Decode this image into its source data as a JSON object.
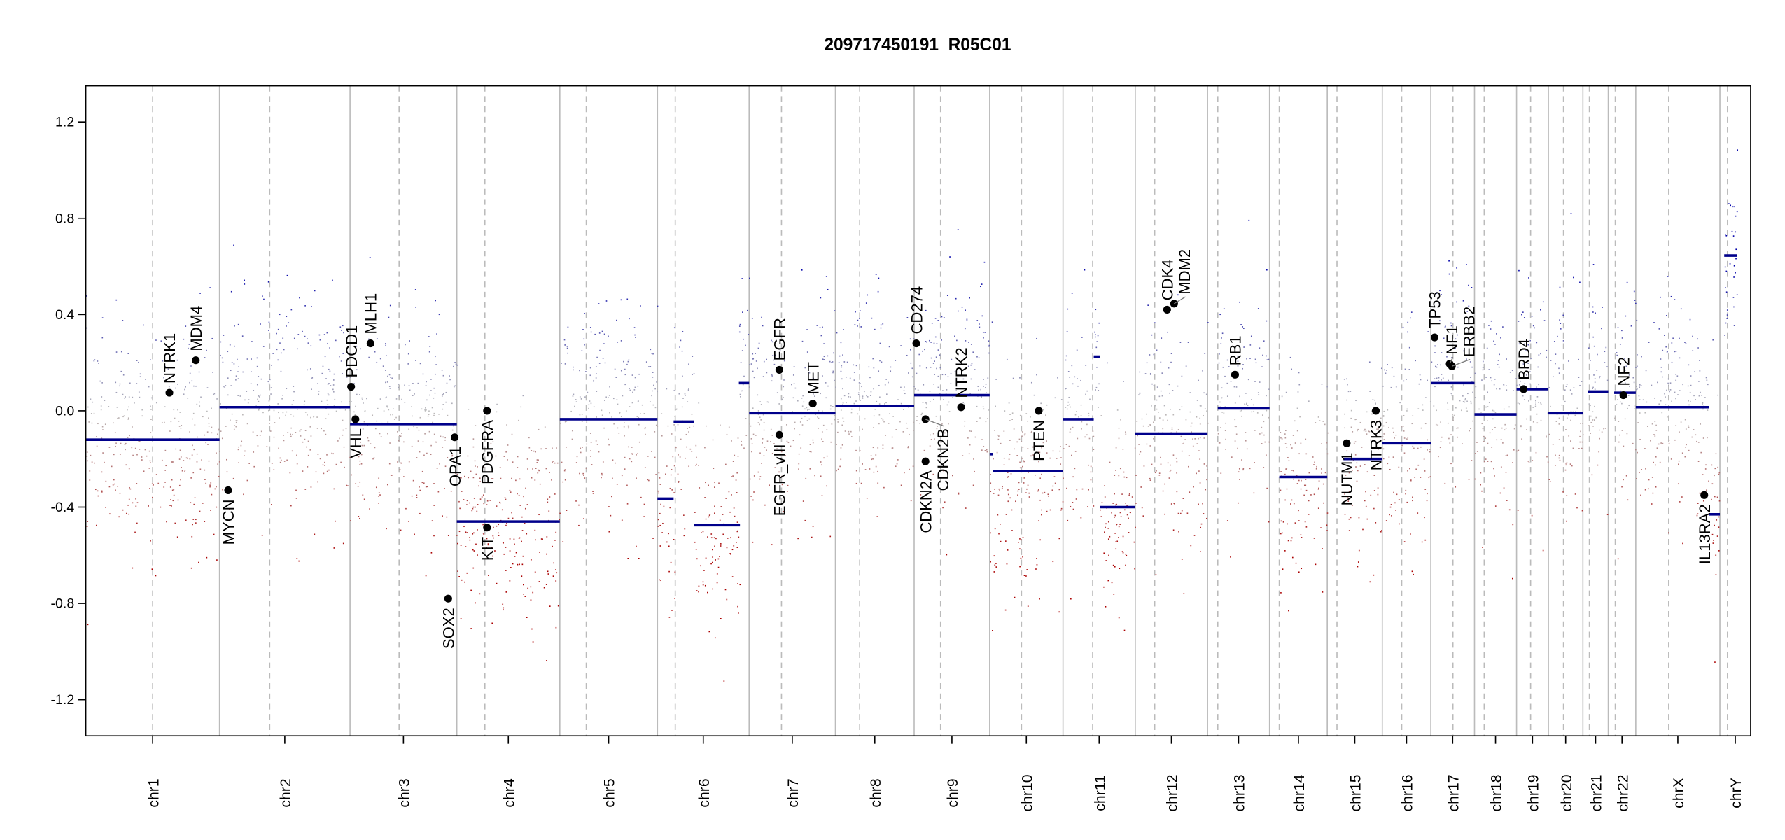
{
  "chart_data": {
    "type": "scatter",
    "title": "209717450191_R05C01",
    "xlabel": "",
    "ylabel": "",
    "ylim": [
      -1.35,
      1.35
    ],
    "yticks": [
      -1.2,
      -0.8,
      -0.4,
      0.0,
      0.4,
      0.8,
      1.2
    ],
    "ytick_labels": [
      "-1.2",
      "-0.8",
      "-0.4",
      "0.0",
      "0.4",
      "0.8",
      "1.2"
    ],
    "grid": false,
    "legend": "none",
    "colors": {
      "gain": "#0000aa",
      "neutral": "#bbbbbb",
      "loss": "#aa0000",
      "segment": "#00008b",
      "gene": "#000000",
      "boundary": "#bbbbbb"
    },
    "chromosomes": [
      {
        "name": "chr1",
        "start": 0,
        "end": 248,
        "centromere": 124,
        "segments": [
          {
            "start": 0,
            "end": 248,
            "value": -0.12
          }
        ]
      },
      {
        "name": "chr2",
        "start": 248,
        "end": 490,
        "centromere": 341,
        "segments": [
          {
            "start": 248,
            "end": 490,
            "value": 0.015
          }
        ]
      },
      {
        "name": "chr3",
        "start": 490,
        "end": 688,
        "centromere": 581,
        "segments": [
          {
            "start": 490,
            "end": 688,
            "value": -0.055
          }
        ]
      },
      {
        "name": "chr4",
        "start": 688,
        "end": 879,
        "centromere": 740,
        "segments": [
          {
            "start": 688,
            "end": 879,
            "value": -0.46
          }
        ]
      },
      {
        "name": "chr5",
        "start": 879,
        "end": 1060,
        "centromere": 928,
        "segments": [
          {
            "start": 879,
            "end": 1060,
            "value": -0.035
          }
        ]
      },
      {
        "name": "chr6",
        "start": 1060,
        "end": 1230,
        "centromere": 1093,
        "segments": [
          {
            "start": 1060,
            "end": 1090,
            "value": -0.365
          },
          {
            "start": 1090,
            "end": 1128,
            "value": -0.045
          },
          {
            "start": 1128,
            "end": 1213,
            "value": -0.475
          }
        ]
      },
      {
        "name": "chr7",
        "start": 1230,
        "end": 1390,
        "centromere": 1290,
        "segments": [
          {
            "start": 1211,
            "end": 1230,
            "value": 0.115
          },
          {
            "start": 1230,
            "end": 1390,
            "value": -0.01
          }
        ]
      },
      {
        "name": "chr8",
        "start": 1390,
        "end": 1536,
        "centromere": 1435,
        "segments": [
          {
            "start": 1390,
            "end": 1536,
            "value": 0.02
          }
        ]
      },
      {
        "name": "chr9",
        "start": 1536,
        "end": 1676,
        "centromere": 1585,
        "segments": [
          {
            "start": 1536,
            "end": 1676,
            "value": 0.065
          }
        ]
      },
      {
        "name": "chr10",
        "start": 1676,
        "end": 1812,
        "centromere": 1735,
        "segments": [
          {
            "start": 1676,
            "end": 1682,
            "value": -0.18
          },
          {
            "start": 1682,
            "end": 1812,
            "value": -0.25
          }
        ]
      },
      {
        "name": "chr11",
        "start": 1812,
        "end": 1946,
        "centromere": 1867,
        "segments": [
          {
            "start": 1812,
            "end": 1869,
            "value": -0.035
          },
          {
            "start": 1869,
            "end": 1880,
            "value": 0.225
          },
          {
            "start": 1880,
            "end": 1946,
            "value": -0.4
          }
        ]
      },
      {
        "name": "chr12",
        "start": 1946,
        "end": 2080,
        "centromere": 1982,
        "segments": [
          {
            "start": 1946,
            "end": 2080,
            "value": -0.095
          }
        ]
      },
      {
        "name": "chr13",
        "start": 2080,
        "end": 2195,
        "centromere": 2099,
        "segments": [
          {
            "start": 2099,
            "end": 2195,
            "value": 0.01
          }
        ]
      },
      {
        "name": "chr14",
        "start": 2195,
        "end": 2302,
        "centromere": 2213,
        "segments": [
          {
            "start": 2213,
            "end": 2302,
            "value": -0.275
          }
        ]
      },
      {
        "name": "chr15",
        "start": 2302,
        "end": 2404,
        "centromere": 2320,
        "segments": [
          {
            "start": 2332,
            "end": 2404,
            "value": -0.2
          }
        ]
      },
      {
        "name": "chr16",
        "start": 2404,
        "end": 2494,
        "centromere": 2440,
        "segments": [
          {
            "start": 2404,
            "end": 2494,
            "value": -0.135
          }
        ]
      },
      {
        "name": "chr17",
        "start": 2494,
        "end": 2575,
        "centromere": 2535,
        "segments": [
          {
            "start": 2494,
            "end": 2575,
            "value": 0.115
          }
        ]
      },
      {
        "name": "chr18",
        "start": 2575,
        "end": 2653,
        "centromere": 2593,
        "segments": [
          {
            "start": 2575,
            "end": 2653,
            "value": -0.015
          }
        ]
      },
      {
        "name": "chr19",
        "start": 2653,
        "end": 2712,
        "centromere": 2679,
        "segments": [
          {
            "start": 2653,
            "end": 2712,
            "value": 0.09
          }
        ]
      },
      {
        "name": "chr20",
        "start": 2712,
        "end": 2776,
        "centromere": 2740,
        "segments": [
          {
            "start": 2712,
            "end": 2776,
            "value": -0.01
          }
        ]
      },
      {
        "name": "chr21",
        "start": 2776,
        "end": 2823,
        "centromere": 2788,
        "segments": [
          {
            "start": 2785,
            "end": 2823,
            "value": 0.08
          }
        ]
      },
      {
        "name": "chr22",
        "start": 2823,
        "end": 2874,
        "centromere": 2836,
        "segments": [
          {
            "start": 2834,
            "end": 2874,
            "value": 0.075
          }
        ]
      },
      {
        "name": "chrX",
        "start": 2874,
        "end": 3030,
        "centromere": 2935,
        "segments": [
          {
            "start": 2874,
            "end": 3010,
            "value": 0.015
          },
          {
            "start": 3010,
            "end": 3030,
            "value": -0.43
          }
        ]
      },
      {
        "name": "chrY",
        "start": 3030,
        "end": 3087,
        "centromere": 3044,
        "segments": [
          {
            "start": 3038,
            "end": 3062,
            "value": 0.645
          }
        ]
      }
    ],
    "genes": [
      {
        "name": "NTRK1",
        "pos": 155,
        "value": 0.075,
        "label": "above"
      },
      {
        "name": "MDM4",
        "pos": 204,
        "value": 0.21,
        "label": "above"
      },
      {
        "name": "MYCN",
        "pos": 264,
        "value": -0.33,
        "label": "below"
      },
      {
        "name": "PDCD1",
        "pos": 492,
        "value": 0.1,
        "label": "above"
      },
      {
        "name": "MLH1",
        "pos": 528,
        "value": 0.28,
        "label": "above"
      },
      {
        "name": "VHL",
        "pos": 500,
        "value": -0.035,
        "label": "below"
      },
      {
        "name": "OPA1",
        "pos": 684,
        "value": -0.11,
        "label": "below"
      },
      {
        "name": "SOX2",
        "pos": 672,
        "value": -0.78,
        "label": "below"
      },
      {
        "name": "PDGFRA",
        "pos": 744,
        "value": 0.0,
        "label": "below"
      },
      {
        "name": "KIT",
        "pos": 744,
        "value": -0.485,
        "label": "below"
      },
      {
        "name": "EGFR",
        "pos": 1286,
        "value": 0.17,
        "label": "above"
      },
      {
        "name": "EGFR_vIII",
        "pos": 1286,
        "value": -0.1,
        "label": "below"
      },
      {
        "name": "MET",
        "pos": 1348,
        "value": 0.03,
        "label": "above"
      },
      {
        "name": "CD274",
        "pos": 1540,
        "value": 0.28,
        "label": "above"
      },
      {
        "name": "CDKN2A",
        "pos": 1557,
        "value": -0.21,
        "label": "below"
      },
      {
        "name": "CDKN2B",
        "pos": 1557,
        "value": -0.035,
        "label": "below"
      },
      {
        "name": "NTRK2",
        "pos": 1623,
        "value": 0.015,
        "label": "above"
      },
      {
        "name": "PTEN",
        "pos": 1767,
        "value": 0.0,
        "label": "below"
      },
      {
        "name": "CDK4",
        "pos": 2005,
        "value": 0.42,
        "label": "above"
      },
      {
        "name": "MDM2",
        "pos": 2018,
        "value": 0.445,
        "label": "above"
      },
      {
        "name": "RB1",
        "pos": 2131,
        "value": 0.15,
        "label": "above"
      },
      {
        "name": "NUTM1",
        "pos": 2338,
        "value": -0.135,
        "label": "below"
      },
      {
        "name": "NTRK3",
        "pos": 2392,
        "value": 0.0,
        "label": "below"
      },
      {
        "name": "TP53",
        "pos": 2501,
        "value": 0.305,
        "label": "above"
      },
      {
        "name": "NF1",
        "pos": 2529,
        "value": 0.195,
        "label": "above"
      },
      {
        "name": "ERBB2",
        "pos": 2533,
        "value": 0.185,
        "label": "above"
      },
      {
        "name": "BRD4",
        "pos": 2666,
        "value": 0.09,
        "label": "above"
      },
      {
        "name": "NF2",
        "pos": 2851,
        "value": 0.065,
        "label": "above"
      },
      {
        "name": "IL13RA2",
        "pos": 3001,
        "value": -0.35,
        "label": "below"
      }
    ]
  }
}
